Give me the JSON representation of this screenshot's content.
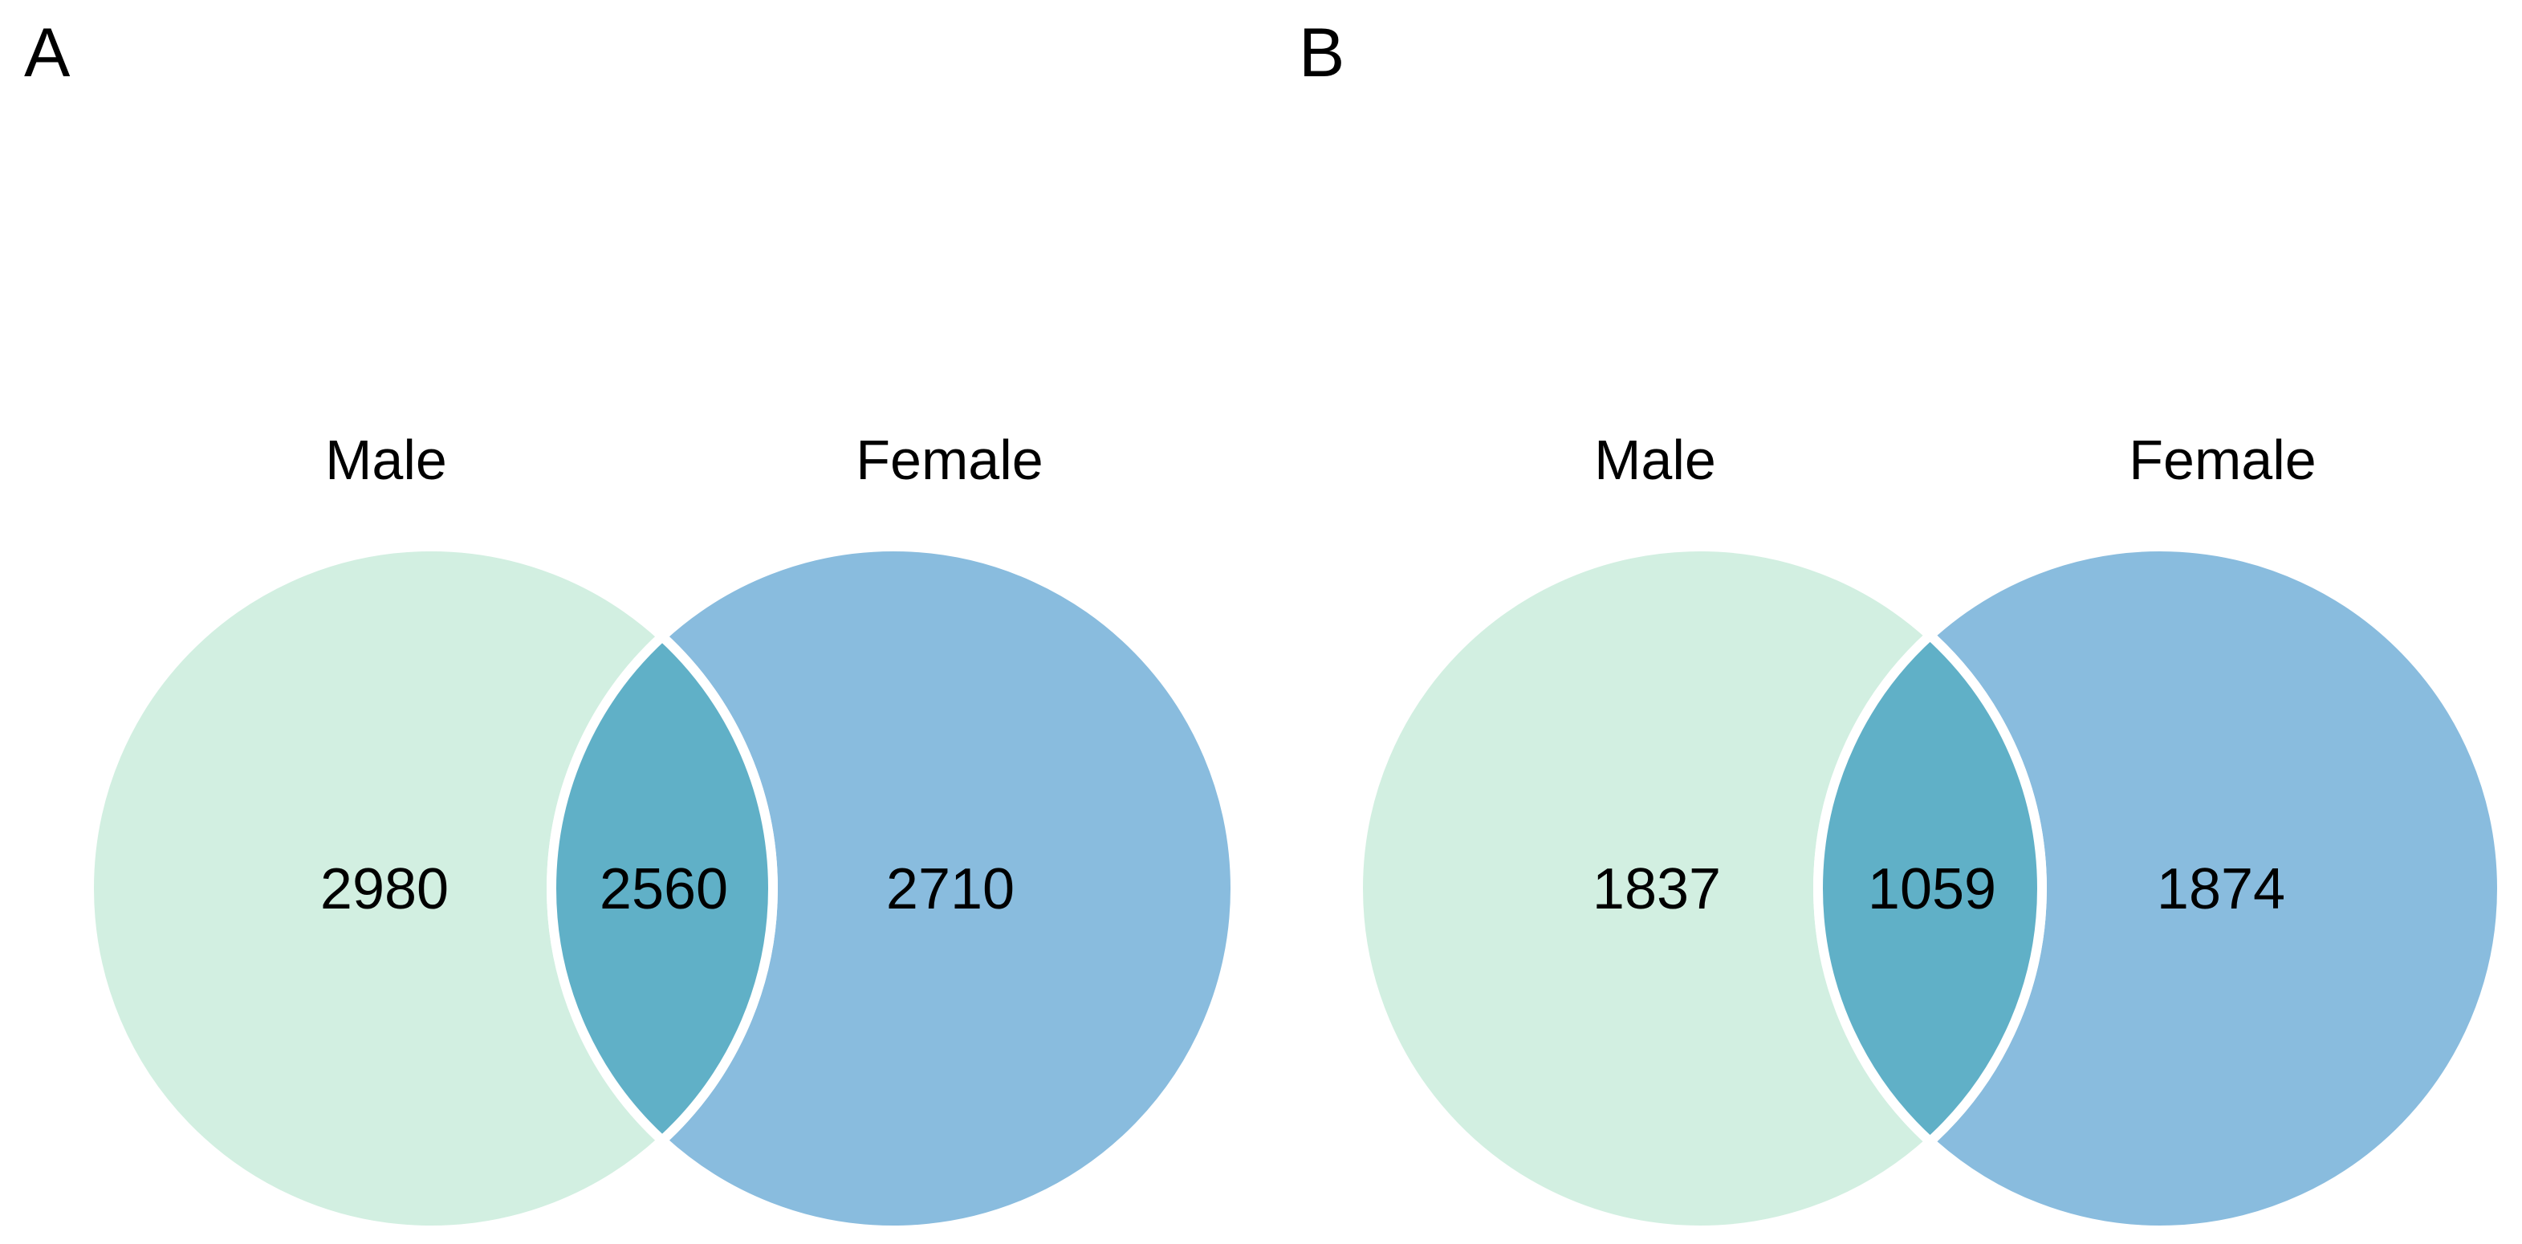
{
  "colors": {
    "male_region_fill": "#d2efe1",
    "female_region_fill": "#89bcde",
    "intersection_fill": "#60b0c7",
    "region_border": "#ffffff",
    "label_text": "#000000",
    "background": "#ffffff"
  },
  "chart_data": [
    {
      "type": "venn",
      "panel_label": "A",
      "sets": [
        "Male",
        "Female"
      ],
      "legend_position": "above-circles",
      "regions": {
        "male_only": 2980,
        "intersection": 2560,
        "female_only": 2710
      }
    },
    {
      "type": "venn",
      "panel_label": "B",
      "sets": [
        "Male",
        "Female"
      ],
      "legend_position": "above-circles",
      "regions": {
        "male_only": 1837,
        "intersection": 1059,
        "female_only": 1874
      }
    }
  ]
}
